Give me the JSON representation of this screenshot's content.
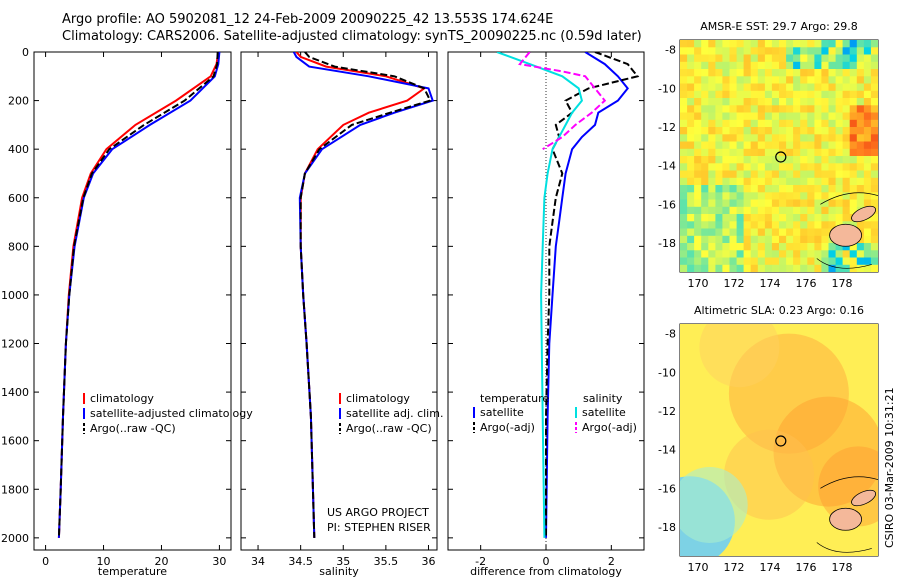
{
  "title": {
    "line1": "Argo profile: AO 5902081_12 24-Feb-2009 20090225_42 13.553S 174.624E",
    "line2": "Climatology: CARS2006. Satellite-adjusted climatology: synTS_20090225.nc (0.59d later)"
  },
  "sidebar": {
    "stamp": "CSIRO 03-Mar-2009 10:31:21"
  },
  "colors": {
    "climatology": "#ff0000",
    "satellite": "#0000ff",
    "argo": "#000000",
    "cyan": "#00e0e0",
    "magenta": "#ff00ff"
  },
  "chart_data": [
    {
      "id": "temperature",
      "type": "line",
      "xlabel": "temperature",
      "ylabel": "",
      "xlim": [
        -2,
        32
      ],
      "ylim": [
        2050,
        0
      ],
      "xticks": [
        "0",
        "10",
        "20",
        "30"
      ],
      "yticks": [
        "0",
        "200",
        "400",
        "600",
        "800",
        "1000",
        "1200",
        "1400",
        "1600",
        "1800",
        "2000"
      ],
      "ytick_values": [
        0,
        200,
        400,
        600,
        800,
        1000,
        1200,
        1400,
        1600,
        1800,
        2000
      ],
      "legend": [
        "climatology",
        "satellite-adjusted climatology",
        "Argo(..raw -QC)"
      ],
      "series": [
        {
          "name": "climatology",
          "color": "#ff0000",
          "dash": false,
          "depth": [
            0,
            50,
            100,
            200,
            300,
            400,
            500,
            600,
            800,
            1000,
            1200,
            1500,
            1800,
            2000
          ],
          "values": [
            29.8,
            29.5,
            28.5,
            22.5,
            15.5,
            10.5,
            7.8,
            6.3,
            4.8,
            4.0,
            3.5,
            3.0,
            2.6,
            2.3
          ]
        },
        {
          "name": "satellite-adjusted climatology",
          "color": "#0000ff",
          "dash": false,
          "depth": [
            0,
            50,
            100,
            200,
            300,
            400,
            500,
            600,
            800,
            1000,
            1200,
            1500,
            1800,
            2000
          ],
          "values": [
            30.0,
            29.8,
            29.2,
            25.0,
            18.0,
            11.5,
            8.2,
            6.6,
            5.0,
            4.1,
            3.5,
            3.0,
            2.6,
            2.3
          ]
        },
        {
          "name": "Argo(..raw -QC)",
          "color": "#000000",
          "dash": true,
          "depth": [
            0,
            50,
            100,
            200,
            300,
            400,
            500,
            600,
            800,
            1000,
            1200,
            1500,
            1800,
            2000
          ],
          "values": [
            29.7,
            29.6,
            29.0,
            24.0,
            17.0,
            11.0,
            8.0,
            6.5,
            4.9,
            4.1,
            3.5,
            3.0,
            2.6,
            2.3
          ]
        }
      ]
    },
    {
      "id": "salinity",
      "type": "line",
      "xlabel": "salinity",
      "ylabel": "",
      "xlim": [
        33.8,
        36.1
      ],
      "ylim": [
        2050,
        0
      ],
      "xticks": [
        "34",
        "34.5",
        "35",
        "35.5",
        "36"
      ],
      "xtick_values": [
        34,
        34.5,
        35,
        35.5,
        36
      ],
      "legend": [
        "climatology",
        "satellite adj. clim.",
        "Argo(..raw -QC)"
      ],
      "annotations": [
        "US ARGO PROJECT",
        "PI: STEPHEN RISER"
      ],
      "series": [
        {
          "name": "climatology",
          "color": "#ff0000",
          "dash": false,
          "depth": [
            0,
            20,
            60,
            100,
            150,
            200,
            250,
            300,
            400,
            500,
            600,
            800,
            1000,
            1200,
            1500,
            2000
          ],
          "values": [
            34.45,
            34.5,
            34.8,
            35.5,
            35.95,
            35.75,
            35.3,
            35.0,
            34.7,
            34.55,
            34.5,
            34.5,
            34.53,
            34.57,
            34.62,
            34.66
          ]
        },
        {
          "name": "satellite adj. clim.",
          "color": "#0000ff",
          "dash": false,
          "depth": [
            0,
            20,
            60,
            100,
            150,
            200,
            250,
            300,
            400,
            500,
            600,
            800,
            1000,
            1200,
            1500,
            2000
          ],
          "values": [
            34.42,
            34.45,
            34.6,
            35.3,
            36.0,
            36.05,
            35.6,
            35.2,
            34.75,
            34.55,
            34.49,
            34.5,
            34.53,
            34.57,
            34.62,
            34.66
          ]
        },
        {
          "name": "Argo(..raw -QC)",
          "color": "#000000",
          "dash": true,
          "depth": [
            0,
            20,
            60,
            100,
            150,
            200,
            250,
            300,
            400,
            500,
            600,
            800,
            1000,
            1200,
            1500,
            2000
          ],
          "values": [
            34.55,
            34.6,
            34.9,
            35.6,
            35.95,
            36.02,
            35.55,
            35.1,
            34.72,
            34.55,
            34.5,
            34.5,
            34.53,
            34.57,
            34.62,
            34.66
          ]
        }
      ]
    },
    {
      "id": "difference",
      "type": "line",
      "xlabel": "difference from climatology",
      "ylabel": "",
      "xlim": [
        -3,
        3
      ],
      "ylim": [
        2050,
        0
      ],
      "xticks": [
        "-2",
        "0",
        "2"
      ],
      "xtick_values": [
        -2,
        0,
        2
      ],
      "legend_headers": [
        "temperature",
        "salinity"
      ],
      "legend": [
        "satellite",
        "Argo(-adj)",
        "satellite",
        "Argo(-adj)"
      ],
      "series": [
        {
          "name": "temperature satellite",
          "color": "#0000ff",
          "dash": false,
          "depth": [
            0,
            50,
            100,
            150,
            200,
            250,
            300,
            350,
            400,
            500,
            600,
            700,
            800,
            1000,
            1200,
            1500,
            2000
          ],
          "values": [
            1.2,
            1.8,
            2.2,
            2.5,
            2.2,
            1.6,
            1.5,
            1.1,
            0.8,
            0.6,
            0.5,
            0.4,
            0.3,
            0.2,
            0.1,
            0.05,
            0.0
          ]
        },
        {
          "name": "temperature Argo(-adj)",
          "color": "#000000",
          "dash": true,
          "depth": [
            0,
            50,
            100,
            150,
            200,
            250,
            300,
            350,
            400,
            500,
            600,
            700,
            800,
            1000,
            1200,
            1500,
            2000
          ],
          "values": [
            1.5,
            2.5,
            2.8,
            1.3,
            0.6,
            0.8,
            0.3,
            0.4,
            0.2,
            0.5,
            0.3,
            0.2,
            0.1,
            0.1,
            0.05,
            0.0,
            0.0
          ]
        },
        {
          "name": "salinity satellite",
          "color": "#00e0e0",
          "dash": false,
          "depth": [
            0,
            50,
            100,
            150,
            200,
            250,
            300,
            400,
            500,
            600,
            800,
            1000,
            1500,
            2000
          ],
          "values": [
            -1.5,
            -0.5,
            0.5,
            1.0,
            1.1,
            0.8,
            0.6,
            0.2,
            0.05,
            -0.05,
            -0.1,
            -0.15,
            -0.1,
            -0.05
          ]
        },
        {
          "name": "salinity Argo(-adj)",
          "color": "#ff00ff",
          "dash": true,
          "depth": [
            0,
            50,
            80,
            100,
            150,
            200,
            250,
            300,
            350,
            400
          ],
          "values": [
            -0.5,
            -0.8,
            0.5,
            1.2,
            1.5,
            1.8,
            1.4,
            0.9,
            0.5,
            -0.1
          ]
        }
      ]
    },
    {
      "id": "sst-map",
      "type": "heatmap",
      "title": "AMSR-E SST: 29.7 Argo: 29.8",
      "xlim": [
        169,
        180
      ],
      "ylim": [
        -19.5,
        -7.5
      ],
      "xticks": [
        "170",
        "172",
        "174",
        "176",
        "178"
      ],
      "xtick_values": [
        170,
        172,
        174,
        176,
        178
      ],
      "yticks": [
        "-8",
        "-10",
        "-12",
        "-14",
        "-16",
        "-18"
      ],
      "ytick_values": [
        -8,
        -10,
        -12,
        -14,
        -16,
        -18
      ],
      "marker": {
        "lon": 174.6,
        "lat": -13.55
      }
    },
    {
      "id": "sla-map",
      "type": "heatmap",
      "title": "Altimetric SLA: 0.23 Argo: 0.16",
      "xlim": [
        169,
        180
      ],
      "ylim": [
        -19.5,
        -7.5
      ],
      "xticks": [
        "170",
        "172",
        "174",
        "176",
        "178"
      ],
      "xtick_values": [
        170,
        172,
        174,
        176,
        178
      ],
      "yticks": [
        "-8",
        "-10",
        "-12",
        "-14",
        "-16",
        "-18"
      ],
      "ytick_values": [
        -8,
        -10,
        -12,
        -14,
        -16,
        -18
      ],
      "marker": {
        "lon": 174.6,
        "lat": -13.55
      }
    }
  ]
}
